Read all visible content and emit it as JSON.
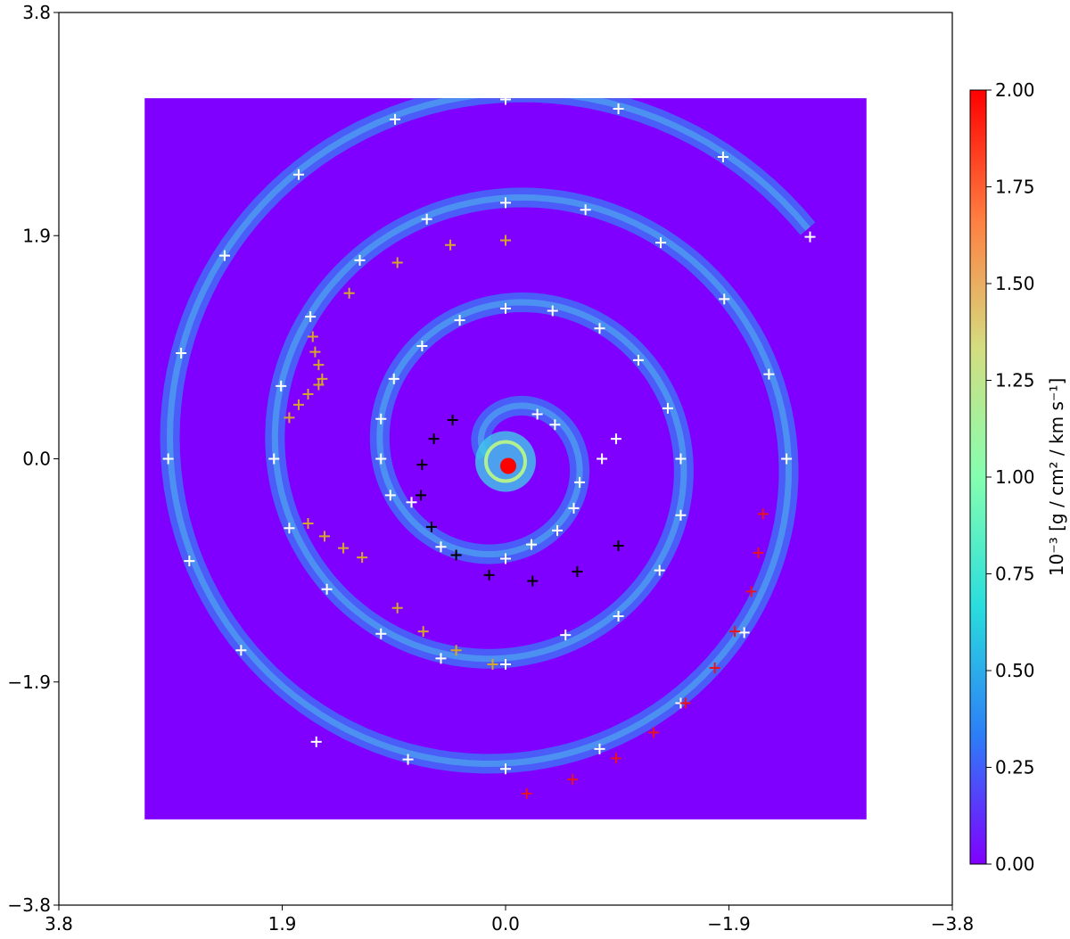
{
  "chart_data": {
    "type": "scatter",
    "xlim": [
      3.8,
      -3.8
    ],
    "ylim": [
      -3.8,
      3.8
    ],
    "xticks": [
      3.8,
      1.9,
      {
        "value": 0,
        "label": "0.0"
      },
      {
        "value": -1.9,
        "label": "−1.9"
      },
      {
        "value": -3.8,
        "label": "−3.8"
      }
    ],
    "yticks": [
      {
        "value": -3.8,
        "label": "−3.8"
      },
      {
        "value": -1.9,
        "label": "−1.9"
      },
      {
        "value": 0,
        "label": "0.0"
      },
      1.9,
      3.8
    ],
    "image_extent": [
      3.07,
      -3.07,
      -3.07,
      3.07
    ],
    "colorbar": {
      "label": "10⁻³ [g / cm² / km s⁻¹]",
      "lim": [
        0,
        2
      ],
      "ticks": [
        {
          "value": 0,
          "label": "0.00"
        },
        {
          "value": 0.25,
          "label": "0.25"
        },
        {
          "value": 0.5,
          "label": "0.50"
        },
        {
          "value": 0.75,
          "label": "0.75"
        },
        {
          "value": 1,
          "label": "1.00"
        },
        {
          "value": 1.25,
          "label": "1.25"
        },
        {
          "value": 1.5,
          "label": "1.50"
        },
        {
          "value": 1.75,
          "label": "1.75"
        },
        {
          "value": 2,
          "label": "2.00"
        }
      ],
      "colormap": [
        "#8000ff",
        "#2c7ef7",
        "#2adddd",
        "#84ffb0",
        "#d4dd80",
        "#ff7e41",
        "#ff0000"
      ]
    },
    "series": [
      {
        "color": "#ffffff",
        "x": [
          0.94,
          -0.96,
          1.76,
          -1.85,
          0.0,
          0.67,
          -0.68,
          -2.59,
          2.39,
          1.24,
          -1.32,
          -1.86,
          0.0,
          1.66,
          -0.4,
          0.39,
          -0.8,
          0.71,
          2.76,
          -1.13,
          -2.24,
          0.95,
          1.91,
          -1.38,
          -0.27,
          1.06,
          -0.42,
          -0.94,
          2.87,
          1.97,
          1.06,
          -0.82,
          -1.49,
          -2.39,
          -0.63,
          0.98,
          -0.58,
          0.8,
          1.84,
          -0.44,
          -1.49,
          2.69,
          0.55,
          0.0,
          -0.22,
          -1.31,
          1.52,
          -0.96,
          1.06,
          -2.03,
          -0.51,
          2.25,
          0.55,
          0.0,
          -1.49,
          1.61,
          -0.8,
          0.83,
          0.0,
          0.0
        ],
        "y": [
          2.89,
          2.98,
          2.42,
          2.57,
          2.18,
          2.04,
          2.12,
          1.89,
          1.73,
          1.69,
          1.84,
          1.36,
          1.28,
          1.21,
          1.26,
          1.18,
          1.11,
          0.96,
          0.9,
          0.84,
          0.72,
          0.68,
          0.62,
          0.43,
          0.38,
          0.34,
          0.29,
          0.17,
          0.0,
          0.0,
          0.0,
          0.0,
          0.0,
          0.0,
          -0.2,
          -0.31,
          -0.42,
          -0.37,
          -0.59,
          -0.61,
          -0.48,
          -0.87,
          -0.75,
          -0.85,
          -0.73,
          -0.95,
          -1.11,
          -1.34,
          -1.49,
          -1.48,
          -1.5,
          -1.63,
          -1.7,
          -1.75,
          -2.08,
          -2.41,
          -2.47,
          -2.56,
          -2.64,
          3.06
        ]
      },
      {
        "color": "#d4a72c",
        "x": [
          0.47,
          0.0,
          0.92,
          1.33,
          1.64,
          1.62,
          1.59,
          1.56,
          1.59,
          1.68,
          1.76,
          1.84,
          1.68,
          1.54,
          1.38,
          1.22,
          0.92,
          0.7,
          0.42,
          0.11
        ],
        "y": [
          1.82,
          1.86,
          1.67,
          1.41,
          1.04,
          0.91,
          0.8,
          0.68,
          0.63,
          0.55,
          0.46,
          0.35,
          -0.55,
          -0.66,
          -0.76,
          -0.84,
          -1.27,
          -1.47,
          -1.63,
          -1.75
        ]
      },
      {
        "color": "#000000",
        "x": [
          0.45,
          0.61,
          0.71,
          0.72,
          0.63,
          0.42,
          0.14,
          -0.23,
          -0.61,
          -0.96
        ],
        "y": [
          0.33,
          0.17,
          -0.05,
          -0.31,
          -0.58,
          -0.82,
          -0.99,
          -1.04,
          -0.96,
          -0.74
        ]
      },
      {
        "color": "#e8141e",
        "x": [
          -2.19,
          -2.15,
          -2.09,
          -1.95,
          -1.78,
          -1.53,
          -1.26,
          -0.94,
          -0.57,
          -0.18
        ],
        "y": [
          -0.47,
          -0.8,
          -1.13,
          -1.47,
          -1.78,
          -2.08,
          -2.33,
          -2.55,
          -2.73,
          -2.85
        ]
      }
    ]
  }
}
